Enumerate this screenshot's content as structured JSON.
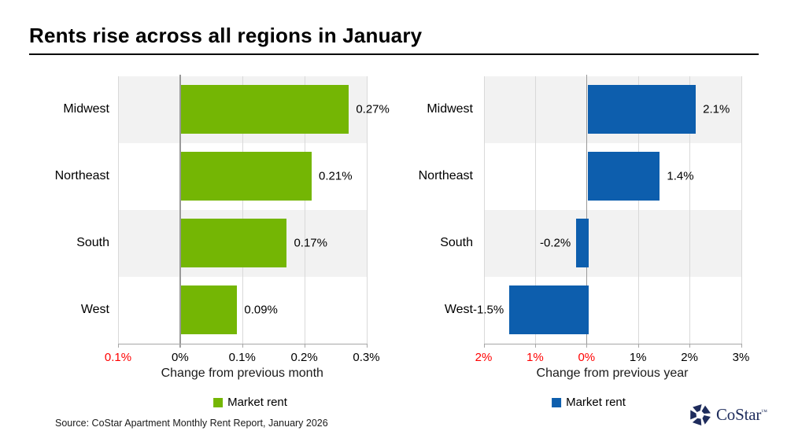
{
  "title": "Rents rise across all regions in January",
  "source": "Source: CoStar Apartment Monthly Rent Report, January 2026",
  "logo": {
    "text": "CoStar",
    "tm": "™"
  },
  "colors": {
    "green": "#74B604",
    "blue": "#0D5EAD",
    "band": "#F2F2F2",
    "grid": "#D9D9D9",
    "zero_line": "#999999",
    "axis": "#A6A6A6",
    "negative_tick": "#FF0000",
    "logo_navy": "#1E2C5C"
  },
  "chart_data": [
    {
      "type": "bar",
      "orientation": "horizontal",
      "categories": [
        "Midwest",
        "Northeast",
        "South",
        "West"
      ],
      "values": [
        0.27,
        0.21,
        0.17,
        0.09
      ],
      "value_labels": [
        "0.27%",
        "0.21%",
        "0.17%",
        "0.09%"
      ],
      "xlabel": "Change from previous month",
      "xlim": [
        -0.1,
        0.3
      ],
      "ticks": [
        {
          "value": -0.1,
          "label": "0.1%",
          "red": true
        },
        {
          "value": 0,
          "label": "0%",
          "red": false
        },
        {
          "value": 0.1,
          "label": "0.1%",
          "red": false
        },
        {
          "value": 0.2,
          "label": "0.2%",
          "red": false
        },
        {
          "value": 0.3,
          "label": "0.3%",
          "red": false
        }
      ],
      "legend": "Market rent",
      "series_color_key": "green",
      "grid": true,
      "legend_position": "bottom-center",
      "row_bands": true
    },
    {
      "type": "bar",
      "orientation": "horizontal",
      "categories": [
        "Midwest",
        "Northeast",
        "South",
        "West"
      ],
      "values": [
        2.1,
        1.4,
        -0.2,
        -1.5
      ],
      "value_labels": [
        "2.1%",
        "1.4%",
        "-0.2%",
        "-1.5%"
      ],
      "xlabel": "Change from previous year",
      "xlim": [
        -2,
        3
      ],
      "ticks": [
        {
          "value": -2,
          "label": "2%",
          "red": true
        },
        {
          "value": -1,
          "label": "1%",
          "red": true
        },
        {
          "value": 0,
          "label": "0%",
          "red": true
        },
        {
          "value": 1,
          "label": "1%",
          "red": false
        },
        {
          "value": 2,
          "label": "2%",
          "red": false
        },
        {
          "value": 3,
          "label": "3%",
          "red": false
        }
      ],
      "legend": "Market rent",
      "series_color_key": "blue",
      "grid": true,
      "legend_position": "bottom-center",
      "row_bands": true
    }
  ]
}
